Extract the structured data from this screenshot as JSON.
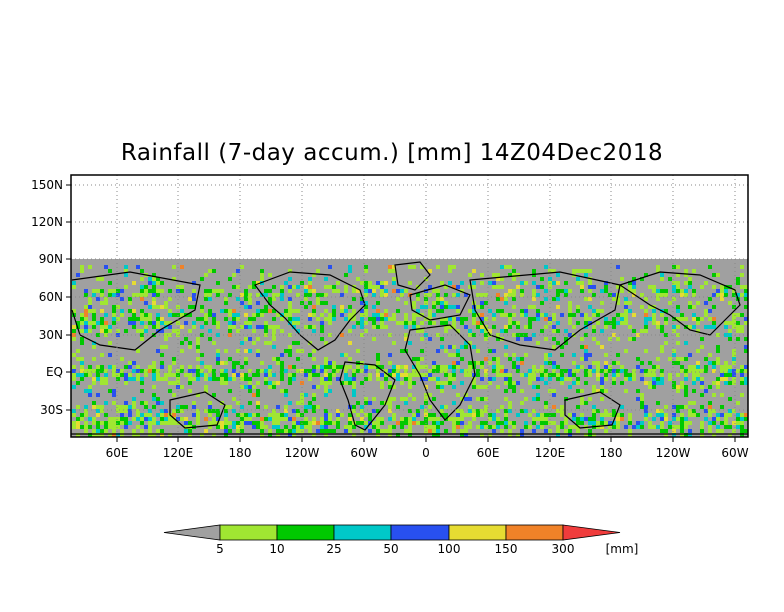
{
  "title": "Rainfall (7-day accum.) [mm] 14Z04Dec2018",
  "lat_labels": [
    "150N",
    "120N",
    "90N",
    "60N",
    "30N",
    "EQ",
    "30S"
  ],
  "lon_labels": [
    "60E",
    "120E",
    "180",
    "120W",
    "60W",
    "0",
    "60E",
    "120E",
    "180",
    "120W",
    "60W"
  ],
  "colorbar": {
    "labels": [
      "5",
      "10",
      "25",
      "50",
      "100",
      "150",
      "300"
    ],
    "unit": "[mm]",
    "colors": [
      "#a0a0a0",
      "#a0e632",
      "#00c800",
      "#00c8c8",
      "#2850f0",
      "#e6dc32",
      "#f08228",
      "#f03c3c"
    ]
  },
  "colors": {
    "land_mask": "#a0a0a0",
    "no_data": "#ffffff",
    "coastline": "#000000"
  }
}
